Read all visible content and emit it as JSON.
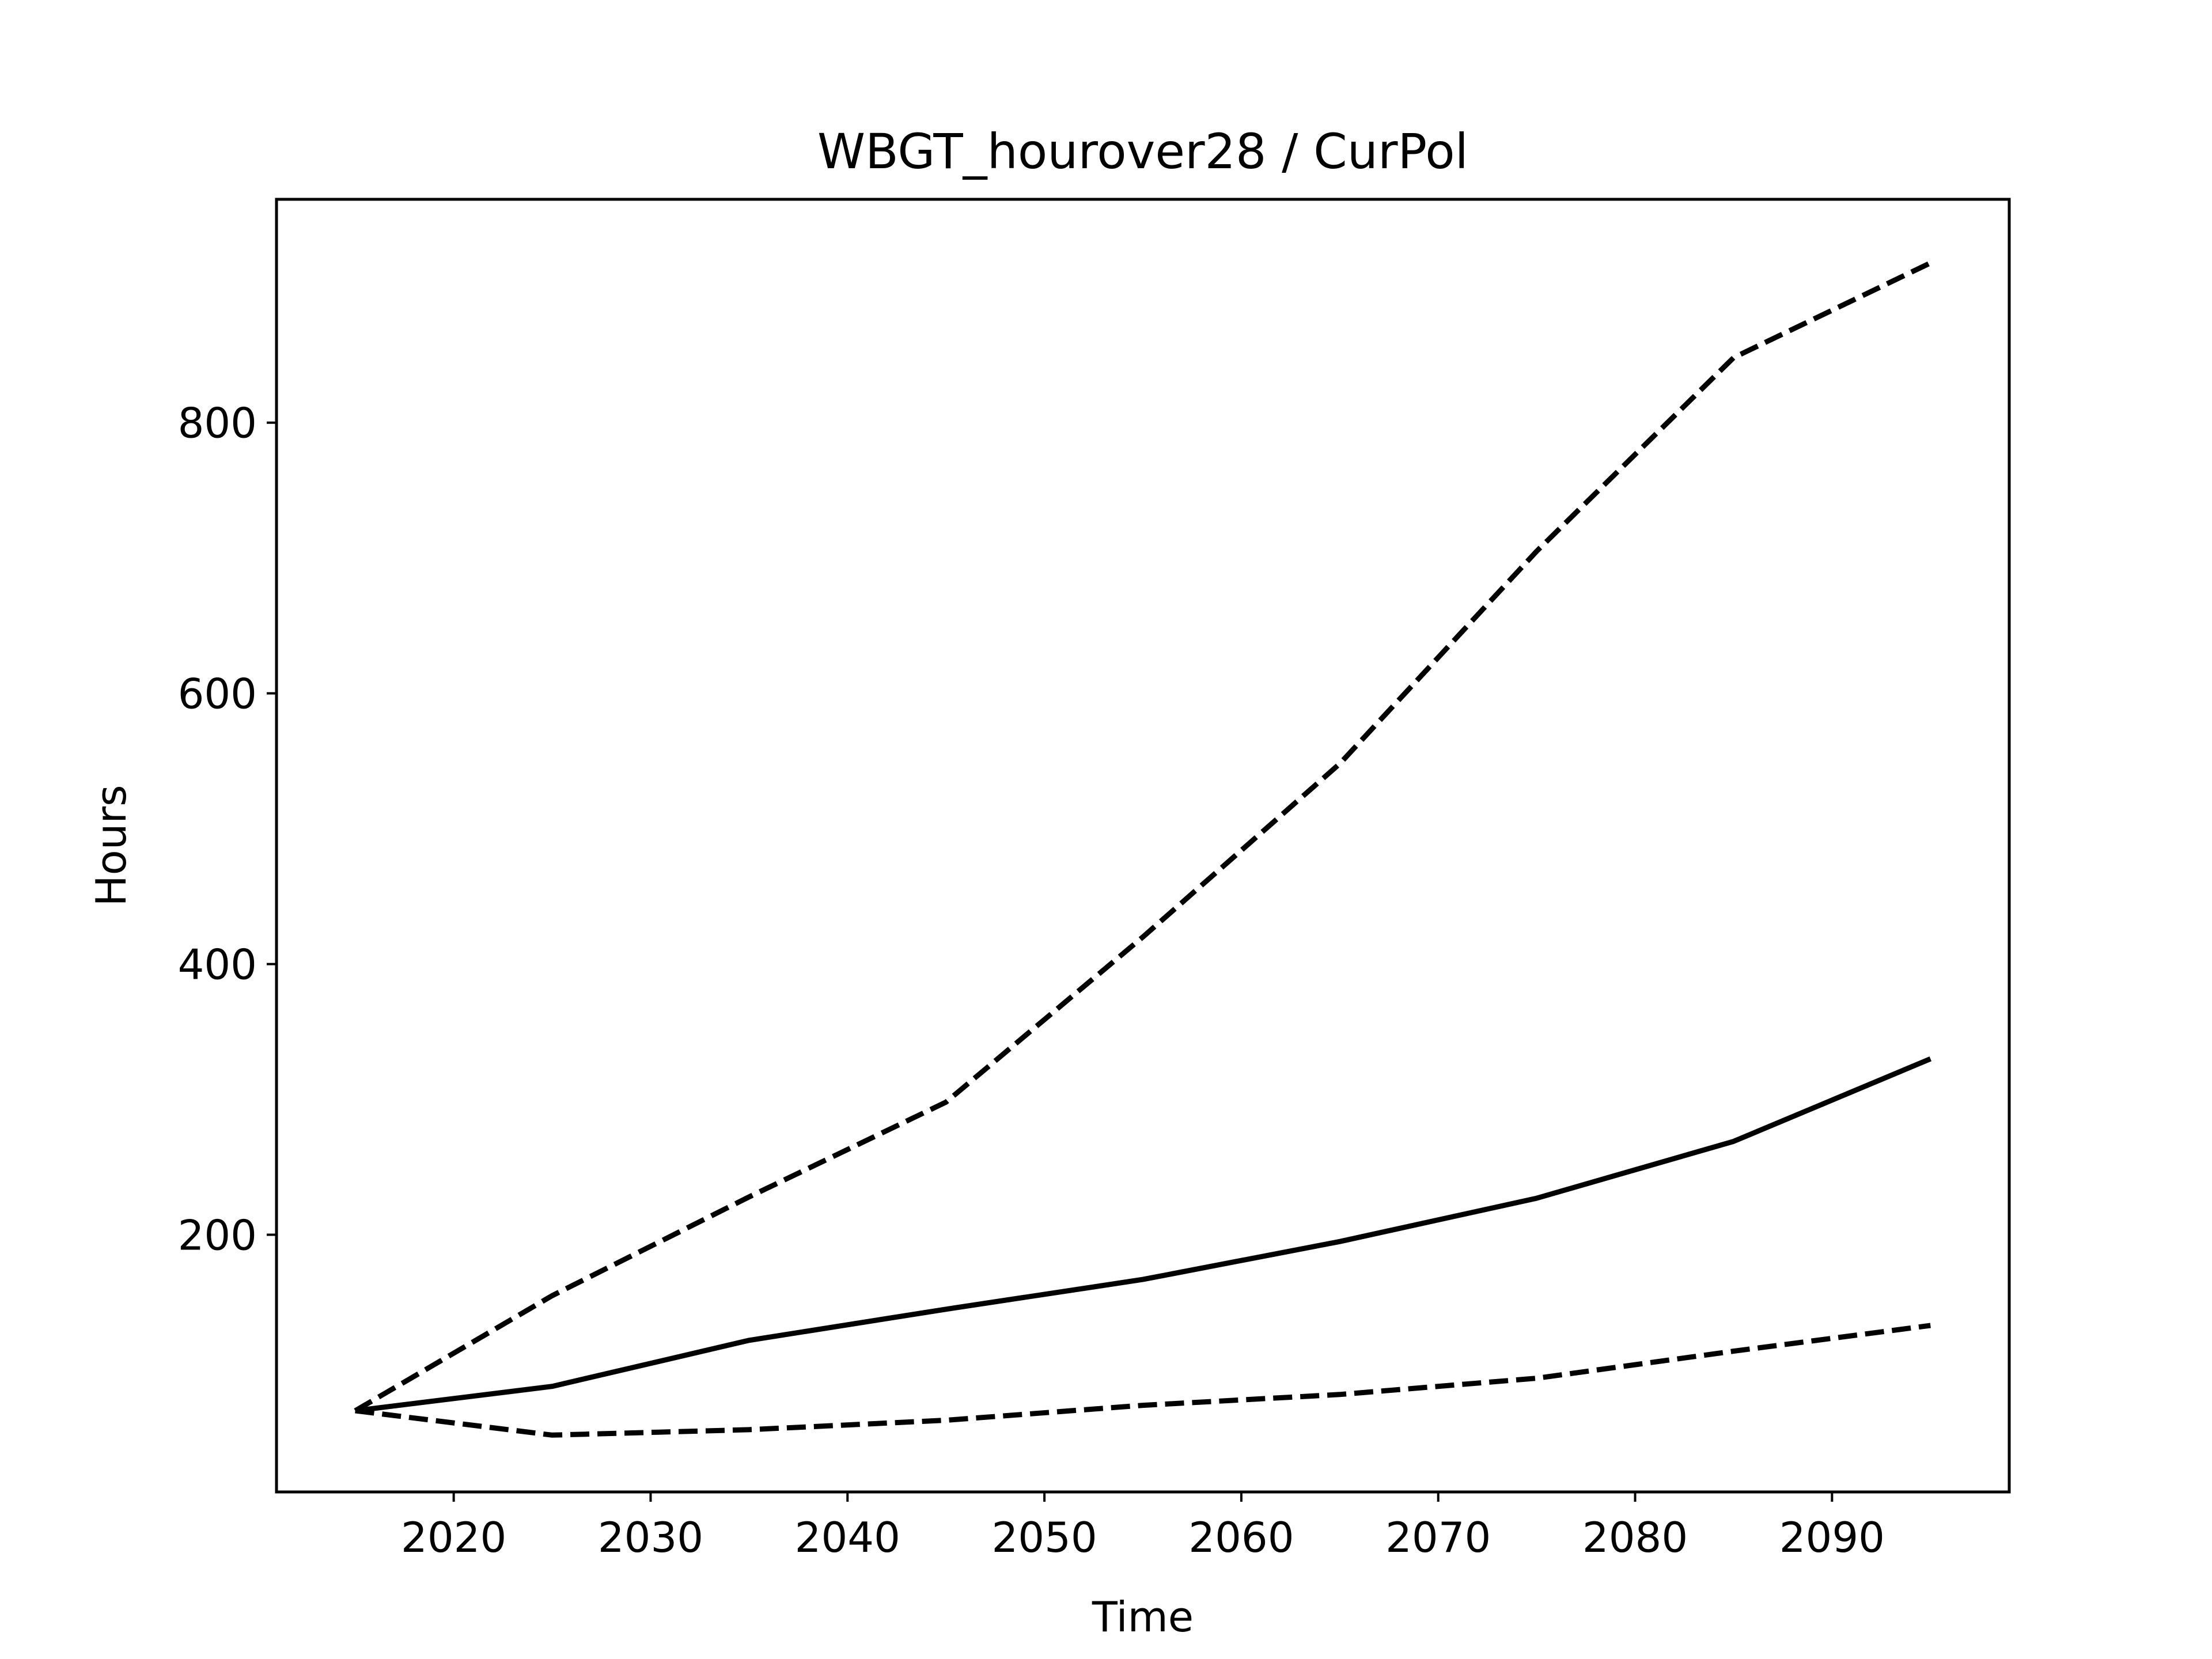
{
  "chart_data": {
    "type": "line",
    "title": "WBGT_hourover28 / CurPol",
    "xlabel": "Time",
    "ylabel": "Hours",
    "x": [
      2015,
      2025,
      2035,
      2045,
      2055,
      2065,
      2075,
      2085,
      2095
    ],
    "xlim": [
      2011,
      2099
    ],
    "ylim": [
      10,
      965
    ],
    "x_ticks": [
      2020,
      2030,
      2040,
      2050,
      2060,
      2070,
      2080,
      2090
    ],
    "y_ticks": [
      200,
      400,
      600,
      800
    ],
    "grid": false,
    "series": [
      {
        "values": [
          70,
          155,
          228,
          298,
          420,
          548,
          705,
          848,
          918
        ],
        "style": "dashed",
        "color": "#000000"
      },
      {
        "values": [
          70,
          88,
          122,
          145,
          167,
          195,
          227,
          269,
          330
        ],
        "style": "solid",
        "color": "#000000"
      },
      {
        "values": [
          70,
          52,
          56,
          63,
          74,
          82,
          94,
          114,
          133
        ],
        "style": "dashed",
        "color": "#000000"
      }
    ]
  }
}
